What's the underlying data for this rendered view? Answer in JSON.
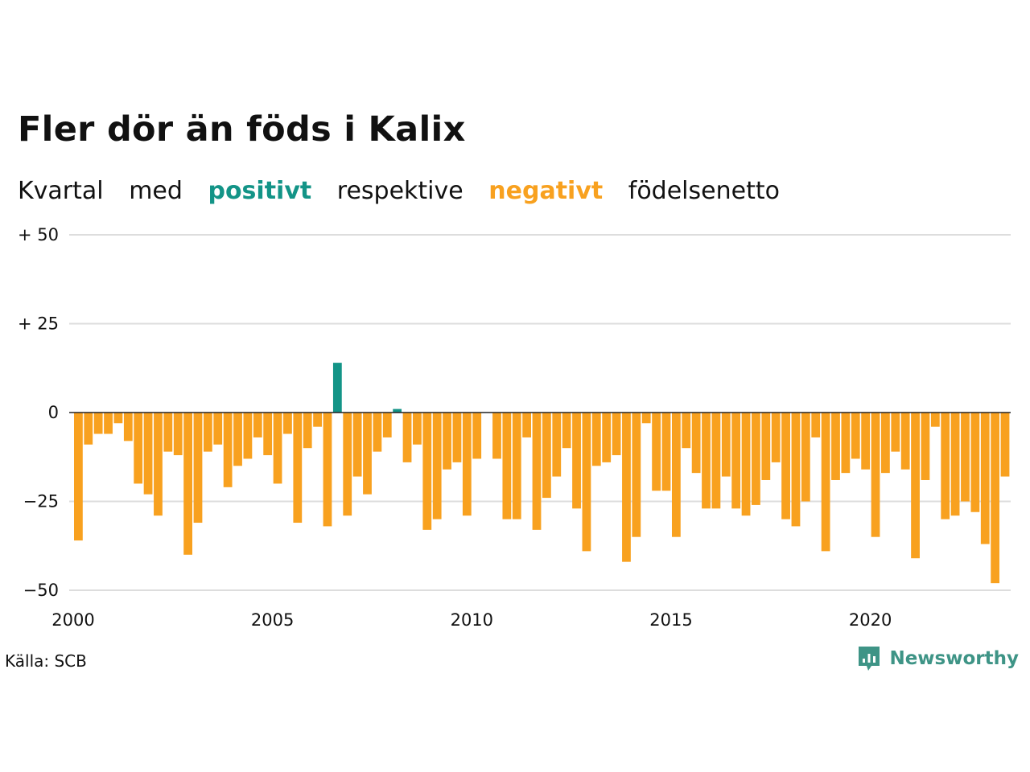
{
  "title": "Fler dör än föds i Kalix",
  "subtitle": {
    "w1": "Kvartal",
    "w2": "med",
    "positive_word": "positivt",
    "w3": "respektive",
    "negative_word": "negativt",
    "w4": "födelsenetto"
  },
  "source": "Källa: SCB",
  "brand": "Newsworthy",
  "colors": {
    "positive": "#139487",
    "negative": "#F8A11F",
    "brand": "#3E9486",
    "grid": "#DDDDDD",
    "zero": "#222222"
  },
  "chart_data": {
    "type": "bar",
    "xlim": [
      2000,
      2023.5
    ],
    "ylim": [
      -50,
      50
    ],
    "y_ticks": [
      {
        "value": 50,
        "label": "+ 50"
      },
      {
        "value": 25,
        "label": "+ 25"
      },
      {
        "value": 0,
        "label": "0"
      },
      {
        "value": -25,
        "label": "−25"
      },
      {
        "value": -50,
        "label": "−50"
      }
    ],
    "x_ticks": [
      {
        "value": 2000,
        "label": "2000"
      },
      {
        "value": 2005,
        "label": "2005"
      },
      {
        "value": 2010,
        "label": "2010"
      },
      {
        "value": 2015,
        "label": "2015"
      },
      {
        "value": 2020,
        "label": "2020"
      }
    ],
    "grid": true,
    "x": [
      2000.0,
      2000.25,
      2000.5,
      2000.75,
      2001.0,
      2001.25,
      2001.5,
      2001.75,
      2002.0,
      2002.25,
      2002.5,
      2002.75,
      2003.0,
      2003.25,
      2003.5,
      2003.75,
      2004.0,
      2004.25,
      2004.5,
      2004.75,
      2005.0,
      2005.25,
      2005.5,
      2005.75,
      2006.0,
      2006.25,
      2006.5,
      2006.75,
      2007.0,
      2007.25,
      2007.5,
      2007.75,
      2008.0,
      2008.25,
      2008.5,
      2008.75,
      2009.0,
      2009.25,
      2009.5,
      2009.75,
      2010.0,
      2010.25,
      2010.5,
      2010.75,
      2011.0,
      2011.25,
      2011.5,
      2011.75,
      2012.0,
      2012.25,
      2012.5,
      2012.75,
      2013.0,
      2013.25,
      2013.5,
      2013.75,
      2014.0,
      2014.25,
      2014.5,
      2014.75,
      2015.0,
      2015.25,
      2015.5,
      2015.75,
      2016.0,
      2016.25,
      2016.5,
      2016.75,
      2017.0,
      2017.25,
      2017.5,
      2017.75,
      2018.0,
      2018.25,
      2018.5,
      2018.75,
      2019.0,
      2019.25,
      2019.5,
      2019.75,
      2020.0,
      2020.25,
      2020.5,
      2020.75,
      2021.0,
      2021.25,
      2021.5,
      2021.75,
      2022.0,
      2022.25,
      2022.5,
      2022.75,
      2023.0,
      2023.25
    ],
    "values": [
      -36,
      -9,
      -6,
      -6,
      -3,
      -8,
      -20,
      -23,
      -29,
      -11,
      -12,
      -40,
      -31,
      -11,
      -9,
      -21,
      -15,
      -13,
      -7,
      -12,
      -20,
      -6,
      -31,
      -10,
      -4,
      -32,
      14,
      -29,
      -18,
      -23,
      -11,
      -7,
      1,
      -14,
      -9,
      -33,
      -30,
      -16,
      -14,
      -29,
      -13,
      0,
      -13,
      -30,
      -30,
      -7,
      -33,
      -24,
      -18,
      -10,
      -27,
      -39,
      -15,
      -14,
      -12,
      -42,
      -35,
      -3,
      -22,
      -22,
      -35,
      -10,
      -17,
      -27,
      -27,
      -18,
      -27,
      -29,
      -26,
      -19,
      -14,
      -30,
      -32,
      -25,
      -7,
      -39,
      -19,
      -17,
      -13,
      -16,
      -35,
      -17,
      -11,
      -16,
      -41,
      -19,
      -4,
      -30,
      -29,
      -25,
      -28,
      -37,
      -48,
      -18
    ]
  }
}
